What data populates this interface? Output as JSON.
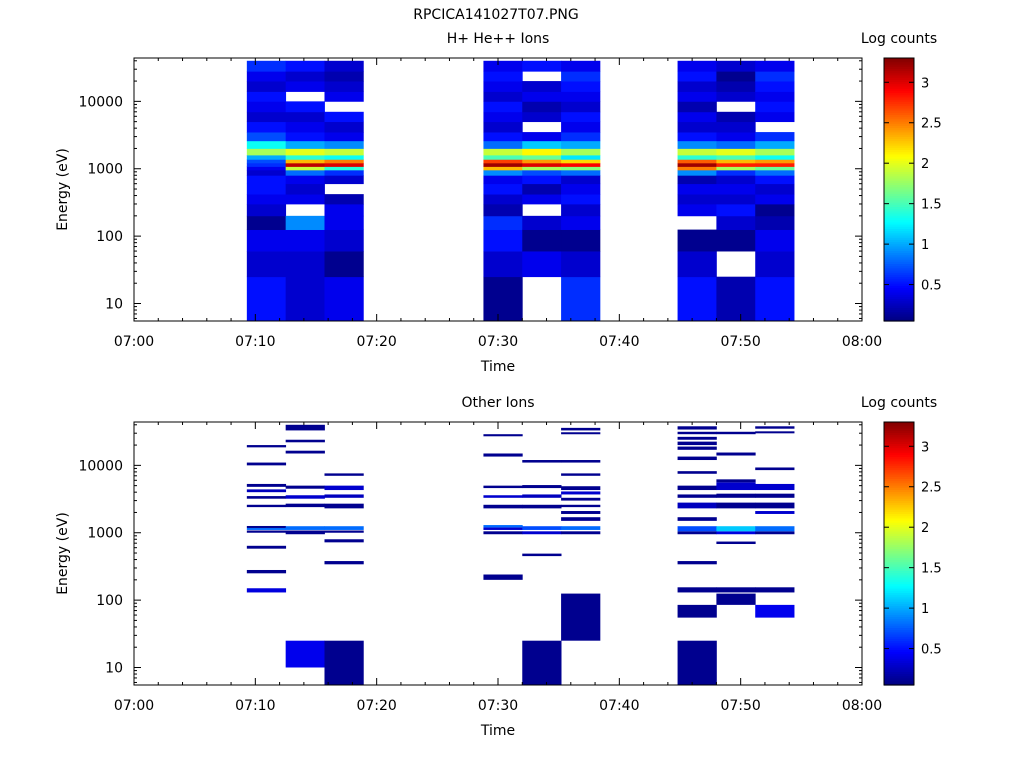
{
  "figure_title": "RPCICA141027T07.PNG",
  "chart_data": [
    {
      "type": "heatmap",
      "title": "H+ He++ Ions",
      "xlabel": "Time",
      "ylabel": "Energy (eV)",
      "x_ticks": [
        "07:00",
        "07:10",
        "07:20",
        "07:30",
        "07:40",
        "07:50",
        "08:00"
      ],
      "xlim_minutes": [
        0,
        60
      ],
      "ylim": [
        5.5,
        44000
      ],
      "y_scale": "log",
      "y_ticks": [
        "10",
        "100",
        "1000",
        "10000"
      ],
      "colorbar": {
        "label": "Log counts",
        "range": [
          0.05,
          3.3
        ],
        "ticks": [
          "0.5",
          "1",
          "1.5",
          "2",
          "2.5",
          "3"
        ]
      },
      "time_blocks_minutes": [
        [
          9.3,
          12.5
        ],
        [
          12.5,
          15.7
        ],
        [
          15.7,
          18.9
        ],
        [
          28.8,
          32.0
        ],
        [
          32.0,
          35.2
        ],
        [
          35.2,
          38.4
        ],
        [
          44.8,
          48.0
        ],
        [
          48.0,
          51.2
        ],
        [
          51.2,
          54.4
        ]
      ],
      "energy_bands_eV": [
        [
          5.5,
          25
        ],
        [
          25,
          60
        ],
        [
          60,
          125
        ],
        [
          125,
          200
        ],
        [
          200,
          300
        ],
        [
          300,
          420
        ],
        [
          420,
          600
        ],
        [
          600,
          800
        ],
        [
          800,
          960
        ],
        [
          960,
          1080
        ],
        [
          1080,
          1220
        ],
        [
          1220,
          1380
        ],
        [
          1380,
          1600
        ],
        [
          1600,
          2000
        ],
        [
          2000,
          2600
        ],
        [
          2600,
          3500
        ],
        [
          3500,
          5000
        ],
        [
          5000,
          7000
        ],
        [
          7000,
          10000
        ],
        [
          10000,
          14000
        ],
        [
          14000,
          20000
        ],
        [
          20000,
          28000
        ],
        [
          28000,
          40000
        ]
      ],
      "values": [
        [
          0.5,
          0.3,
          0.4,
          0.1,
          0.3,
          0.4,
          0.5,
          0.5,
          0.3,
          0.4,
          0.6,
          0.7,
          1.0,
          1.8,
          1.3,
          0.7,
          0.5,
          0.3,
          0.4,
          0.5,
          0.3,
          0.4,
          0.6
        ],
        [
          0.3,
          0.3,
          0.4,
          0.9,
          null,
          0.4,
          0.3,
          0.4,
          0.8,
          1.9,
          3.1,
          2.3,
          1.4,
          2.0,
          1.0,
          0.5,
          0.4,
          0.3,
          0.5,
          null,
          0.4,
          0.3,
          0.5
        ],
        [
          0.4,
          0.1,
          0.3,
          0.4,
          0.4,
          0.2,
          null,
          0.3,
          0.6,
          1.4,
          3.0,
          2.5,
          1.3,
          1.9,
          0.9,
          0.4,
          0.3,
          0.5,
          null,
          0.4,
          0.3,
          0.2,
          0.3
        ],
        [
          0.1,
          0.3,
          0.5,
          0.6,
          0.2,
          0.3,
          0.5,
          0.4,
          0.9,
          2.3,
          3.2,
          2.7,
          1.5,
          1.9,
          0.8,
          0.5,
          0.3,
          0.4,
          0.5,
          0.3,
          0.4,
          0.5,
          0.4
        ],
        [
          null,
          0.4,
          0.1,
          0.3,
          null,
          0.4,
          0.2,
          0.5,
          0.7,
          1.8,
          3.0,
          2.4,
          1.6,
          2.1,
          1.1,
          0.4,
          null,
          0.3,
          0.2,
          0.4,
          0.3,
          null,
          0.5
        ],
        [
          0.6,
          0.3,
          0.1,
          0.4,
          0.3,
          0.5,
          0.4,
          0.3,
          0.8,
          1.7,
          2.9,
          2.2,
          1.2,
          1.8,
          1.0,
          0.6,
          0.4,
          0.5,
          0.3,
          0.4,
          0.5,
          0.6,
          0.4
        ],
        [
          0.5,
          0.3,
          0.1,
          null,
          0.4,
          0.3,
          0.4,
          0.2,
          0.9,
          2.5,
          3.2,
          2.6,
          1.4,
          1.9,
          0.9,
          0.5,
          0.3,
          0.4,
          0.2,
          0.4,
          0.3,
          0.5,
          0.4
        ],
        [
          0.2,
          null,
          0.1,
          0.3,
          0.5,
          0.3,
          0.4,
          0.3,
          0.6,
          1.8,
          2.8,
          2.3,
          1.5,
          2.0,
          0.8,
          0.4,
          0.3,
          0.2,
          null,
          0.3,
          0.2,
          0.1,
          0.3
        ],
        [
          0.5,
          0.3,
          0.4,
          0.2,
          0.1,
          0.4,
          0.3,
          0.5,
          0.8,
          1.6,
          2.8,
          2.4,
          1.3,
          1.8,
          1.0,
          0.6,
          null,
          0.4,
          0.5,
          0.4,
          0.5,
          0.6,
          0.4
        ]
      ]
    },
    {
      "type": "heatmap",
      "title": "Other Ions",
      "xlabel": "Time",
      "ylabel": "Energy (eV)",
      "x_ticks": [
        "07:00",
        "07:10",
        "07:20",
        "07:30",
        "07:40",
        "07:50",
        "08:00"
      ],
      "xlim_minutes": [
        0,
        60
      ],
      "ylim": [
        5.5,
        44000
      ],
      "y_scale": "log",
      "y_ticks": [
        "10",
        "100",
        "1000",
        "10000"
      ],
      "colorbar": {
        "label": "Log counts",
        "range": [
          0.05,
          3.3
        ],
        "ticks": [
          "0.5",
          "1",
          "1.5",
          "2",
          "2.5",
          "3"
        ]
      },
      "time_blocks_minutes": [
        [
          9.3,
          12.5
        ],
        [
          12.5,
          15.7
        ],
        [
          15.7,
          18.9
        ],
        [
          28.8,
          32.0
        ],
        [
          32.0,
          35.2
        ],
        [
          35.2,
          38.4
        ],
        [
          44.8,
          48.0
        ],
        [
          48.0,
          51.2
        ],
        [
          51.2,
          54.4
        ]
      ],
      "cells": [
        [
          0,
          [
            130,
            150
          ],
          0.35
        ],
        [
          0,
          [
            250,
            280
          ],
          0.1
        ],
        [
          0,
          [
            580,
            640
          ],
          0.1
        ],
        [
          0,
          [
            1000,
            1080
          ],
          0.1
        ],
        [
          0,
          [
            1100,
            1180
          ],
          0.8
        ],
        [
          0,
          [
            1200,
            1260
          ],
          0.1
        ],
        [
          0,
          [
            2400,
            2600
          ],
          0.1
        ],
        [
          0,
          [
            3200,
            3500
          ],
          0.1
        ],
        [
          0,
          [
            4000,
            4400
          ],
          0.25
        ],
        [
          0,
          [
            4800,
            5300
          ],
          0.1
        ],
        [
          0,
          [
            10000,
            11000
          ],
          0.1
        ],
        [
          0,
          [
            18500,
            20000
          ],
          0.1
        ],
        [
          1,
          [
            10,
            25
          ],
          0.4
        ],
        [
          1,
          [
            950,
            1080
          ],
          0.1
        ],
        [
          1,
          [
            1100,
            1250
          ],
          0.8
        ],
        [
          1,
          [
            2400,
            2700
          ],
          0.1
        ],
        [
          1,
          [
            3200,
            3600
          ],
          0.3
        ],
        [
          1,
          [
            4500,
            5000
          ],
          0.1
        ],
        [
          1,
          [
            15000,
            16500
          ],
          0.1
        ],
        [
          1,
          [
            22000,
            24000
          ],
          0.1
        ],
        [
          1,
          [
            33000,
            40000
          ],
          0.1
        ],
        [
          2,
          [
            5.5,
            25
          ],
          0.1
        ],
        [
          2,
          [
            340,
            380
          ],
          0.1
        ],
        [
          2,
          [
            720,
            800
          ],
          0.1
        ],
        [
          2,
          [
            1000,
            1080
          ],
          0.1
        ],
        [
          2,
          [
            1100,
            1250
          ],
          0.8
        ],
        [
          2,
          [
            2300,
            2700
          ],
          0.1
        ],
        [
          2,
          [
            3300,
            3700
          ],
          0.25
        ],
        [
          2,
          [
            4300,
            5000
          ],
          0.3
        ],
        [
          2,
          [
            7000,
            7600
          ],
          0.1
        ],
        [
          3,
          [
            200,
            240
          ],
          0.1
        ],
        [
          3,
          [
            950,
            1050
          ],
          0.1
        ],
        [
          3,
          [
            1100,
            1200
          ],
          0.3
        ],
        [
          3,
          [
            1200,
            1300
          ],
          0.8
        ],
        [
          3,
          [
            2300,
            2600
          ],
          0.1
        ],
        [
          3,
          [
            3300,
            3600
          ],
          0.3
        ],
        [
          3,
          [
            4600,
            5000
          ],
          0.1
        ],
        [
          3,
          [
            13500,
            15000
          ],
          0.1
        ],
        [
          3,
          [
            27000,
            29000
          ],
          0.1
        ],
        [
          4,
          [
            5.5,
            25
          ],
          0.1
        ],
        [
          4,
          [
            450,
            490
          ],
          0.1
        ],
        [
          4,
          [
            950,
            1050
          ],
          0.3
        ],
        [
          4,
          [
            1100,
            1250
          ],
          0.7
        ],
        [
          4,
          [
            2300,
            2600
          ],
          0.1
        ],
        [
          4,
          [
            3300,
            3700
          ],
          0.25
        ],
        [
          4,
          [
            4600,
            5100
          ],
          0.1
        ],
        [
          4,
          [
            11000,
            12000
          ],
          0.1
        ],
        [
          5,
          [
            25,
            125
          ],
          0.1
        ],
        [
          5,
          [
            950,
            1050
          ],
          0.1
        ],
        [
          5,
          [
            1100,
            1250
          ],
          0.8
        ],
        [
          5,
          [
            1500,
            1700
          ],
          0.1
        ],
        [
          5,
          [
            1900,
            2100
          ],
          0.1
        ],
        [
          5,
          [
            2400,
            2600
          ],
          0.1
        ],
        [
          5,
          [
            3000,
            3300
          ],
          0.1
        ],
        [
          5,
          [
            3700,
            4100
          ],
          0.3
        ],
        [
          5,
          [
            4300,
            4900
          ],
          0.1
        ],
        [
          5,
          [
            7000,
            7600
          ],
          0.1
        ],
        [
          5,
          [
            11000,
            12000
          ],
          0.1
        ],
        [
          5,
          [
            29000,
            31000
          ],
          0.1
        ],
        [
          5,
          [
            33000,
            36000
          ],
          0.1
        ],
        [
          6,
          [
            5.5,
            25
          ],
          0.1
        ],
        [
          6,
          [
            55,
            85
          ],
          0.1
        ],
        [
          6,
          [
            130,
            155
          ],
          0.1
        ],
        [
          6,
          [
            340,
            380
          ],
          0.1
        ],
        [
          6,
          [
            950,
            1050
          ],
          0.1
        ],
        [
          6,
          [
            1050,
            1250
          ],
          0.7
        ],
        [
          6,
          [
            1500,
            1700
          ],
          0.1
        ],
        [
          6,
          [
            2300,
            2800
          ],
          0.25
        ],
        [
          6,
          [
            3300,
            3700
          ],
          0.1
        ],
        [
          6,
          [
            4300,
            5000
          ],
          0.1
        ],
        [
          6,
          [
            7500,
            8200
          ],
          0.1
        ],
        [
          6,
          [
            12000,
            13500
          ],
          0.1
        ],
        [
          6,
          [
            17000,
            19000
          ],
          0.1
        ],
        [
          6,
          [
            20000,
            22500
          ],
          0.1
        ],
        [
          6,
          [
            24000,
            26500
          ],
          0.1
        ],
        [
          6,
          [
            29000,
            31500
          ],
          0.1
        ],
        [
          6,
          [
            34000,
            38000
          ],
          0.1
        ],
        [
          7,
          [
            85,
            125
          ],
          0.1
        ],
        [
          7,
          [
            130,
            155
          ],
          0.1
        ],
        [
          7,
          [
            680,
            740
          ],
          0.1
        ],
        [
          7,
          [
            950,
            1050
          ],
          0.35
        ],
        [
          7,
          [
            1050,
            1250
          ],
          1.1
        ],
        [
          7,
          [
            2300,
            2800
          ],
          0.1
        ],
        [
          7,
          [
            3300,
            3800
          ],
          0.1
        ],
        [
          7,
          [
            4300,
            5600
          ],
          0.3
        ],
        [
          7,
          [
            5600,
            6200
          ],
          0.1
        ],
        [
          7,
          [
            14000,
            15500
          ],
          0.1
        ],
        [
          7,
          [
            29000,
            31500
          ],
          0.1
        ],
        [
          8,
          [
            55,
            85
          ],
          0.4
        ],
        [
          8,
          [
            130,
            155
          ],
          0.1
        ],
        [
          8,
          [
            950,
            1050
          ],
          0.1
        ],
        [
          8,
          [
            1050,
            1250
          ],
          0.8
        ],
        [
          8,
          [
            1900,
            2100
          ],
          0.3
        ],
        [
          8,
          [
            2300,
            2800
          ],
          0.1
        ],
        [
          8,
          [
            3300,
            3800
          ],
          0.1
        ],
        [
          8,
          [
            4300,
            5300
          ],
          0.3
        ],
        [
          8,
          [
            8500,
            9300
          ],
          0.1
        ],
        [
          8,
          [
            30000,
            32000
          ],
          0.1
        ],
        [
          8,
          [
            35000,
            38000
          ],
          0.1
        ]
      ]
    }
  ]
}
